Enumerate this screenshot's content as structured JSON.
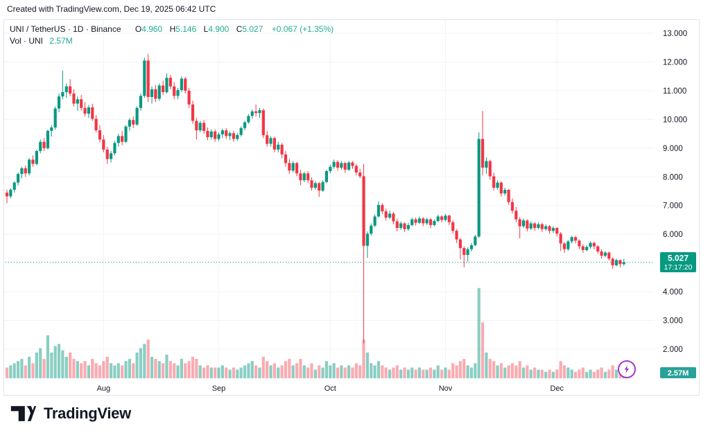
{
  "credit": "Created with TradingView.com, Dec 19, 2025 06:42 UTC",
  "legend": {
    "title": "UNI / TetherUS · 1D · Binance",
    "open_label": "O",
    "open": "4.960",
    "high_label": "H",
    "high": "5.146",
    "low_label": "L",
    "low": "4.900",
    "close_label": "C",
    "close": "5.027",
    "change": "+0.067 (+1.35%)",
    "vol_label": "Vol · UNI",
    "vol_value": "2.57M"
  },
  "badges": {
    "last_price": "5.027",
    "countdown": "17:17:20",
    "volume": "2.57M"
  },
  "footer": {
    "brand": "TradingView"
  },
  "colors": {
    "up": "#089981",
    "down": "#F23645",
    "vol_up": "rgba(8,153,129,0.48)",
    "vol_down": "rgba(242,54,69,0.42)",
    "badge_price_bg": "#089981",
    "badge_vol_bg": "#2AA299",
    "badge_text": "#FFFFFF",
    "grid": "#F0F3FA",
    "axis_text": "#131722",
    "legend_value": "#22AB94",
    "border": "#E0E3EB",
    "dotted_line": "#089981",
    "brand_text": "#131722",
    "lightning": "#A735C9"
  },
  "chart_data": {
    "type": "candlestick",
    "title": "UNI / TetherUS · 1D · Binance",
    "x_unit": "day",
    "x_range": "Jul 6 2025 – Dec 19 2025",
    "ylim": [
      2,
      13.4
    ],
    "grid": true,
    "last_price": 5.027,
    "last_volume_m": 2.57,
    "price_gridlines": [
      13,
      12,
      11,
      10,
      9,
      8,
      7,
      6,
      5,
      4,
      3,
      2
    ],
    "price_ticks": [
      {
        "v": 13,
        "label": "13.000"
      },
      {
        "v": 12,
        "label": "12.000"
      },
      {
        "v": 11,
        "label": "11.000"
      },
      {
        "v": 10,
        "label": "10.000"
      },
      {
        "v": 9,
        "label": "9.000"
      },
      {
        "v": 8,
        "label": "8.000"
      },
      {
        "v": 7,
        "label": "7.000"
      },
      {
        "v": 6,
        "label": "6.000"
      },
      {
        "v": 4,
        "label": "4.000"
      },
      {
        "v": 3,
        "label": "3.000"
      },
      {
        "v": 2,
        "label": "2.000"
      }
    ],
    "months": [
      {
        "label": "Aug",
        "index": 26
      },
      {
        "label": "Sep",
        "index": 57
      },
      {
        "label": "Oct",
        "index": 87
      },
      {
        "label": "Nov",
        "index": 118
      },
      {
        "label": "Dec",
        "index": 148
      }
    ],
    "candles": [
      [
        7.45,
        7.55,
        7.08,
        7.32
      ],
      [
        7.32,
        7.6,
        7.25,
        7.55
      ],
      [
        7.55,
        7.85,
        7.45,
        7.8
      ],
      [
        7.8,
        8.15,
        7.7,
        8.1
      ],
      [
        8.1,
        8.35,
        7.95,
        8.3
      ],
      [
        8.3,
        8.4,
        8.0,
        8.12
      ],
      [
        8.12,
        8.65,
        8.05,
        8.6
      ],
      [
        8.6,
        8.75,
        8.35,
        8.45
      ],
      [
        8.45,
        8.95,
        8.4,
        8.9
      ],
      [
        8.9,
        9.3,
        8.82,
        9.22
      ],
      [
        9.22,
        9.35,
        8.9,
        9.0
      ],
      [
        9.0,
        9.65,
        8.95,
        9.6
      ],
      [
        9.6,
        9.8,
        9.4,
        9.72
      ],
      [
        9.72,
        10.45,
        9.65,
        10.38
      ],
      [
        10.38,
        10.9,
        10.25,
        10.8
      ],
      [
        10.8,
        11.7,
        10.7,
        10.95
      ],
      [
        10.95,
        11.25,
        10.75,
        11.15
      ],
      [
        11.15,
        11.4,
        10.8,
        10.9
      ],
      [
        10.9,
        11.05,
        10.45,
        10.55
      ],
      [
        10.55,
        10.8,
        10.3,
        10.7
      ],
      [
        10.7,
        10.85,
        10.3,
        10.4
      ],
      [
        10.4,
        10.6,
        10.1,
        10.2
      ],
      [
        10.2,
        10.5,
        10.05,
        10.42
      ],
      [
        10.42,
        10.55,
        9.95,
        10.02
      ],
      [
        10.02,
        10.15,
        9.55,
        9.62
      ],
      [
        9.62,
        9.8,
        9.2,
        9.3
      ],
      [
        9.3,
        9.45,
        8.85,
        8.95
      ],
      [
        8.95,
        9.05,
        8.45,
        8.62
      ],
      [
        8.62,
        8.9,
        8.5,
        8.82
      ],
      [
        8.82,
        9.25,
        8.75,
        9.18
      ],
      [
        9.18,
        9.5,
        9.05,
        9.42
      ],
      [
        9.42,
        9.6,
        9.1,
        9.22
      ],
      [
        9.22,
        9.8,
        9.18,
        9.75
      ],
      [
        9.75,
        10.05,
        9.6,
        9.98
      ],
      [
        9.98,
        10.1,
        9.7,
        9.82
      ],
      [
        9.82,
        10.45,
        9.78,
        10.4
      ],
      [
        10.4,
        10.9,
        10.3,
        10.82
      ],
      [
        10.82,
        12.15,
        10.75,
        12.05
      ],
      [
        12.05,
        12.28,
        10.6,
        10.78
      ],
      [
        10.78,
        11.15,
        10.55,
        11.05
      ],
      [
        11.05,
        11.2,
        10.6,
        10.72
      ],
      [
        10.72,
        11.25,
        10.65,
        11.18
      ],
      [
        11.18,
        11.35,
        10.85,
        10.95
      ],
      [
        10.95,
        11.6,
        10.9,
        11.45
      ],
      [
        11.45,
        11.55,
        11.05,
        11.15
      ],
      [
        11.15,
        11.3,
        10.7,
        10.82
      ],
      [
        10.82,
        11.1,
        10.7,
        11.02
      ],
      [
        11.02,
        11.5,
        10.95,
        11.42
      ],
      [
        11.42,
        11.48,
        10.9,
        11.0
      ],
      [
        11.0,
        11.1,
        10.4,
        10.52
      ],
      [
        10.52,
        10.65,
        9.85,
        9.95
      ],
      [
        9.95,
        10.05,
        9.3,
        9.62
      ],
      [
        9.62,
        9.95,
        9.55,
        9.88
      ],
      [
        9.88,
        9.98,
        9.5,
        9.6
      ],
      [
        9.6,
        9.72,
        9.28,
        9.38
      ],
      [
        9.38,
        9.65,
        9.3,
        9.58
      ],
      [
        9.58,
        9.65,
        9.22,
        9.32
      ],
      [
        9.32,
        9.55,
        9.25,
        9.48
      ],
      [
        9.48,
        9.68,
        9.35,
        9.62
      ],
      [
        9.62,
        9.7,
        9.32,
        9.42
      ],
      [
        9.42,
        9.58,
        9.28,
        9.52
      ],
      [
        9.52,
        9.6,
        9.22,
        9.32
      ],
      [
        9.32,
        9.52,
        9.25,
        9.46
      ],
      [
        9.46,
        9.75,
        9.4,
        9.7
      ],
      [
        9.7,
        9.95,
        9.62,
        9.9
      ],
      [
        9.9,
        10.18,
        9.85,
        10.12
      ],
      [
        10.12,
        10.35,
        10.02,
        10.28
      ],
      [
        10.28,
        10.52,
        10.1,
        10.22
      ],
      [
        10.22,
        10.4,
        10.05,
        10.32
      ],
      [
        10.32,
        10.38,
        9.35,
        9.45
      ],
      [
        9.45,
        9.6,
        9.05,
        9.15
      ],
      [
        9.15,
        9.42,
        9.05,
        9.35
      ],
      [
        9.35,
        9.4,
        8.85,
        8.95
      ],
      [
        8.95,
        9.22,
        8.85,
        9.12
      ],
      [
        9.12,
        9.18,
        8.65,
        8.78
      ],
      [
        8.78,
        8.9,
        8.35,
        8.48
      ],
      [
        8.48,
        8.62,
        8.1,
        8.22
      ],
      [
        8.22,
        8.55,
        8.15,
        8.48
      ],
      [
        8.48,
        8.52,
        8.02,
        8.12
      ],
      [
        8.12,
        8.25,
        7.7,
        7.88
      ],
      [
        7.88,
        8.18,
        7.82,
        8.12
      ],
      [
        8.12,
        8.2,
        7.78,
        7.88
      ],
      [
        7.88,
        7.98,
        7.52,
        7.62
      ],
      [
        7.62,
        7.85,
        7.55,
        7.78
      ],
      [
        7.78,
        7.82,
        7.3,
        7.52
      ],
      [
        7.52,
        7.88,
        7.48,
        7.82
      ],
      [
        7.82,
        8.25,
        7.78,
        8.2
      ],
      [
        8.2,
        8.42,
        8.12,
        8.35
      ],
      [
        8.35,
        8.6,
        8.28,
        8.52
      ],
      [
        8.52,
        8.58,
        8.22,
        8.32
      ],
      [
        8.32,
        8.55,
        8.25,
        8.48
      ],
      [
        8.48,
        8.52,
        8.15,
        8.25
      ],
      [
        8.25,
        8.55,
        8.2,
        8.5
      ],
      [
        8.5,
        8.55,
        8.28,
        8.38
      ],
      [
        8.38,
        8.45,
        8.05,
        8.15
      ],
      [
        8.15,
        8.28,
        7.95,
        8.02
      ],
      [
        8.02,
        8.45,
        2.2,
        5.6
      ],
      [
        5.6,
        6.1,
        5.18,
        6.02
      ],
      [
        6.02,
        6.38,
        5.95,
        6.3
      ],
      [
        6.3,
        6.68,
        6.25,
        6.62
      ],
      [
        6.62,
        7.15,
        6.58,
        7.02
      ],
      [
        7.02,
        7.08,
        6.7,
        6.8
      ],
      [
        6.8,
        6.9,
        6.48,
        6.58
      ],
      [
        6.58,
        6.82,
        6.52,
        6.72
      ],
      [
        6.72,
        6.78,
        6.35,
        6.45
      ],
      [
        6.45,
        6.55,
        6.1,
        6.22
      ],
      [
        6.22,
        6.45,
        6.15,
        6.38
      ],
      [
        6.38,
        6.42,
        6.08,
        6.18
      ],
      [
        6.18,
        6.4,
        6.12,
        6.32
      ],
      [
        6.32,
        6.58,
        6.28,
        6.52
      ],
      [
        6.52,
        6.58,
        6.3,
        6.4
      ],
      [
        6.4,
        6.62,
        6.35,
        6.55
      ],
      [
        6.55,
        6.6,
        6.28,
        6.38
      ],
      [
        6.38,
        6.58,
        6.32,
        6.52
      ],
      [
        6.52,
        6.56,
        6.22,
        6.32
      ],
      [
        6.32,
        6.52,
        6.28,
        6.46
      ],
      [
        6.46,
        6.68,
        6.42,
        6.62
      ],
      [
        6.62,
        6.66,
        6.42,
        6.5
      ],
      [
        6.5,
        6.7,
        6.45,
        6.65
      ],
      [
        6.65,
        6.68,
        6.32,
        6.42
      ],
      [
        6.42,
        6.48,
        6.02,
        6.12
      ],
      [
        6.12,
        6.18,
        5.7,
        5.82
      ],
      [
        5.82,
        5.88,
        5.12,
        5.52
      ],
      [
        5.52,
        5.58,
        4.85,
        5.28
      ],
      [
        5.28,
        5.55,
        5.05,
        5.48
      ],
      [
        5.48,
        5.7,
        5.4,
        5.62
      ],
      [
        5.62,
        5.98,
        5.58,
        5.92
      ],
      [
        5.92,
        9.55,
        5.88,
        9.32
      ],
      [
        9.32,
        10.3,
        8.05,
        8.32
      ],
      [
        8.32,
        8.68,
        8.1,
        8.55
      ],
      [
        8.55,
        8.6,
        7.9,
        8.02
      ],
      [
        8.02,
        8.15,
        7.52,
        7.62
      ],
      [
        7.62,
        7.88,
        7.55,
        7.8
      ],
      [
        7.8,
        7.85,
        7.32,
        7.42
      ],
      [
        7.42,
        7.62,
        7.35,
        7.55
      ],
      [
        7.55,
        7.58,
        7.02,
        7.12
      ],
      [
        7.12,
        7.25,
        6.72,
        6.82
      ],
      [
        6.82,
        6.95,
        6.42,
        6.52
      ],
      [
        6.52,
        6.6,
        5.85,
        6.28
      ],
      [
        6.28,
        6.55,
        6.22,
        6.48
      ],
      [
        6.48,
        6.52,
        6.1,
        6.2
      ],
      [
        6.2,
        6.45,
        6.15,
        6.38
      ],
      [
        6.38,
        6.42,
        6.12,
        6.22
      ],
      [
        6.22,
        6.42,
        6.18,
        6.35
      ],
      [
        6.35,
        6.4,
        6.08,
        6.18
      ],
      [
        6.18,
        6.35,
        6.12,
        6.28
      ],
      [
        6.28,
        6.32,
        6.02,
        6.12
      ],
      [
        6.12,
        6.28,
        6.05,
        6.22
      ],
      [
        6.22,
        6.25,
        5.92,
        6.02
      ],
      [
        6.02,
        6.08,
        5.42,
        5.68
      ],
      [
        5.68,
        5.72,
        5.35,
        5.48
      ],
      [
        5.48,
        5.8,
        5.42,
        5.75
      ],
      [
        5.75,
        5.95,
        5.68,
        5.9
      ],
      [
        5.9,
        5.95,
        5.68,
        5.78
      ],
      [
        5.78,
        5.82,
        5.48,
        5.58
      ],
      [
        5.58,
        5.65,
        5.35,
        5.45
      ],
      [
        5.45,
        5.62,
        5.4,
        5.56
      ],
      [
        5.56,
        5.75,
        5.5,
        5.7
      ],
      [
        5.7,
        5.74,
        5.48,
        5.58
      ],
      [
        5.58,
        5.62,
        5.32,
        5.4
      ],
      [
        5.4,
        5.48,
        5.15,
        5.25
      ],
      [
        5.25,
        5.42,
        5.2,
        5.36
      ],
      [
        5.36,
        5.4,
        5.08,
        5.15
      ],
      [
        5.15,
        5.2,
        4.8,
        4.92
      ],
      [
        4.92,
        5.15,
        4.88,
        5.1
      ],
      [
        5.1,
        5.12,
        4.85,
        4.96
      ],
      [
        4.96,
        5.146,
        4.9,
        5.027
      ]
    ],
    "volumes_m": [
      5,
      6,
      7,
      8,
      9,
      6,
      10,
      7,
      12,
      14,
      9,
      20,
      12,
      15,
      16,
      13,
      10,
      12,
      9,
      8,
      7,
      8,
      6,
      9,
      7,
      6,
      8,
      10,
      7,
      6,
      7,
      6,
      8,
      9,
      7,
      12,
      14,
      16,
      18,
      10,
      9,
      8,
      7,
      11,
      8,
      7,
      6,
      9,
      7,
      8,
      10,
      9,
      6,
      5,
      6,
      5,
      5,
      5,
      6,
      5,
      4,
      5,
      4,
      5,
      6,
      7,
      8,
      6,
      5,
      10,
      8,
      6,
      7,
      5,
      6,
      8,
      9,
      6,
      7,
      9,
      6,
      5,
      7,
      4,
      6,
      5,
      8,
      6,
      7,
      5,
      6,
      5,
      6,
      5,
      7,
      6,
      18,
      12,
      7,
      6,
      8,
      6,
      5,
      4,
      5,
      6,
      4,
      5,
      4,
      5,
      4,
      5,
      4,
      4,
      5,
      4,
      6,
      4,
      5,
      4,
      7,
      6,
      8,
      9,
      6,
      5,
      7,
      42,
      26,
      12,
      9,
      8,
      6,
      7,
      5,
      6,
      7,
      6,
      8,
      5,
      6,
      4,
      5,
      4,
      4,
      3,
      4,
      3,
      4,
      8,
      6,
      5,
      4,
      3,
      4,
      5,
      3,
      4,
      3,
      4,
      5,
      3,
      4,
      6,
      4,
      3,
      2.57
    ]
  }
}
